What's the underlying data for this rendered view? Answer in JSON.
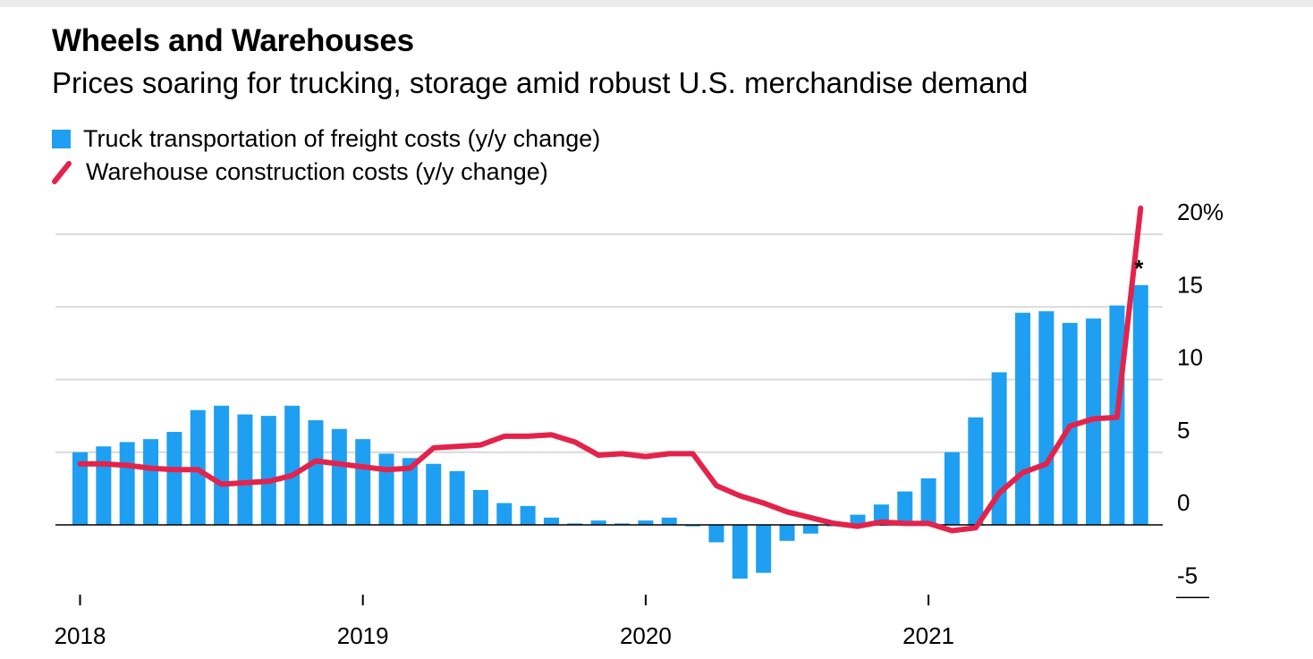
{
  "title": "Wheels and Warehouses",
  "subtitle": "Prices soaring for trucking, storage amid robust U.S. merchandise demand",
  "legend": {
    "bar_label": "Truck transportation of freight costs (y/y change)",
    "line_label": "Warehouse construction costs (y/y change)"
  },
  "colors": {
    "bar": "#1e9ff2",
    "line": "#e3234b",
    "grid": "#d9d9d9"
  },
  "chart_data": {
    "type": "bar",
    "title": "Wheels and Warehouses",
    "xlabel": "",
    "ylabel": "",
    "ylim": [
      -5,
      20
    ],
    "yticks": [
      {
        "value": 20,
        "label": "20%"
      },
      {
        "value": 15,
        "label": "15"
      },
      {
        "value": 10,
        "label": "10"
      },
      {
        "value": 5,
        "label": "5"
      },
      {
        "value": 0,
        "label": "0"
      },
      {
        "value": -5,
        "label": "-5"
      }
    ],
    "xticks": [
      {
        "index": 0,
        "label": "2018"
      },
      {
        "index": 12,
        "label": "2019"
      },
      {
        "index": 24,
        "label": "2020"
      },
      {
        "index": 36,
        "label": "2021"
      }
    ],
    "annotation": {
      "text": "*",
      "index": 45
    },
    "categories": [
      "Jan 2018",
      "Feb 2018",
      "Mar 2018",
      "Apr 2018",
      "May 2018",
      "Jun 2018",
      "Jul 2018",
      "Aug 2018",
      "Sep 2018",
      "Oct 2018",
      "Nov 2018",
      "Dec 2018",
      "Jan 2019",
      "Feb 2019",
      "Mar 2019",
      "Apr 2019",
      "May 2019",
      "Jun 2019",
      "Jul 2019",
      "Aug 2019",
      "Sep 2019",
      "Oct 2019",
      "Nov 2019",
      "Dec 2019",
      "Jan 2020",
      "Feb 2020",
      "Mar 2020",
      "Apr 2020",
      "May 2020",
      "Jun 2020",
      "Jul 2020",
      "Aug 2020",
      "Sep 2020",
      "Oct 2020",
      "Nov 2020",
      "Dec 2020",
      "Jan 2021",
      "Feb 2021",
      "Mar 2021",
      "Apr 2021",
      "May 2021",
      "Jun 2021",
      "Jul 2021",
      "Aug 2021",
      "Sep 2021",
      "Oct 2021"
    ],
    "series": [
      {
        "name": "Truck transportation of freight costs (y/y change)",
        "type": "bar",
        "values": [
          5.0,
          5.4,
          5.7,
          5.9,
          6.4,
          7.9,
          8.2,
          7.6,
          7.5,
          8.2,
          7.2,
          6.6,
          5.9,
          4.9,
          4.6,
          4.2,
          3.7,
          2.4,
          1.5,
          1.3,
          0.5,
          0.1,
          0.3,
          0.1,
          0.3,
          0.5,
          -0.1,
          -1.2,
          -3.7,
          -3.3,
          -1.1,
          -0.6,
          -0.1,
          0.7,
          1.4,
          2.3,
          3.2,
          5.0,
          7.4,
          10.5,
          14.6,
          14.7,
          13.9,
          14.2,
          15.1,
          16.5
        ]
      },
      {
        "name": "Warehouse construction costs (y/y change)",
        "type": "line",
        "values": [
          4.2,
          4.2,
          4.1,
          3.9,
          3.8,
          3.8,
          2.8,
          2.9,
          3.0,
          3.4,
          4.4,
          4.2,
          4.0,
          3.8,
          3.9,
          5.3,
          5.4,
          5.5,
          6.1,
          6.1,
          6.2,
          5.7,
          4.8,
          4.9,
          4.7,
          4.9,
          4.9,
          2.7,
          2.0,
          1.5,
          0.9,
          0.5,
          0.1,
          -0.1,
          0.2,
          0.1,
          0.1,
          -0.4,
          -0.2,
          2.2,
          3.6,
          4.2,
          6.8,
          7.3,
          7.4,
          21.8
        ]
      }
    ]
  }
}
